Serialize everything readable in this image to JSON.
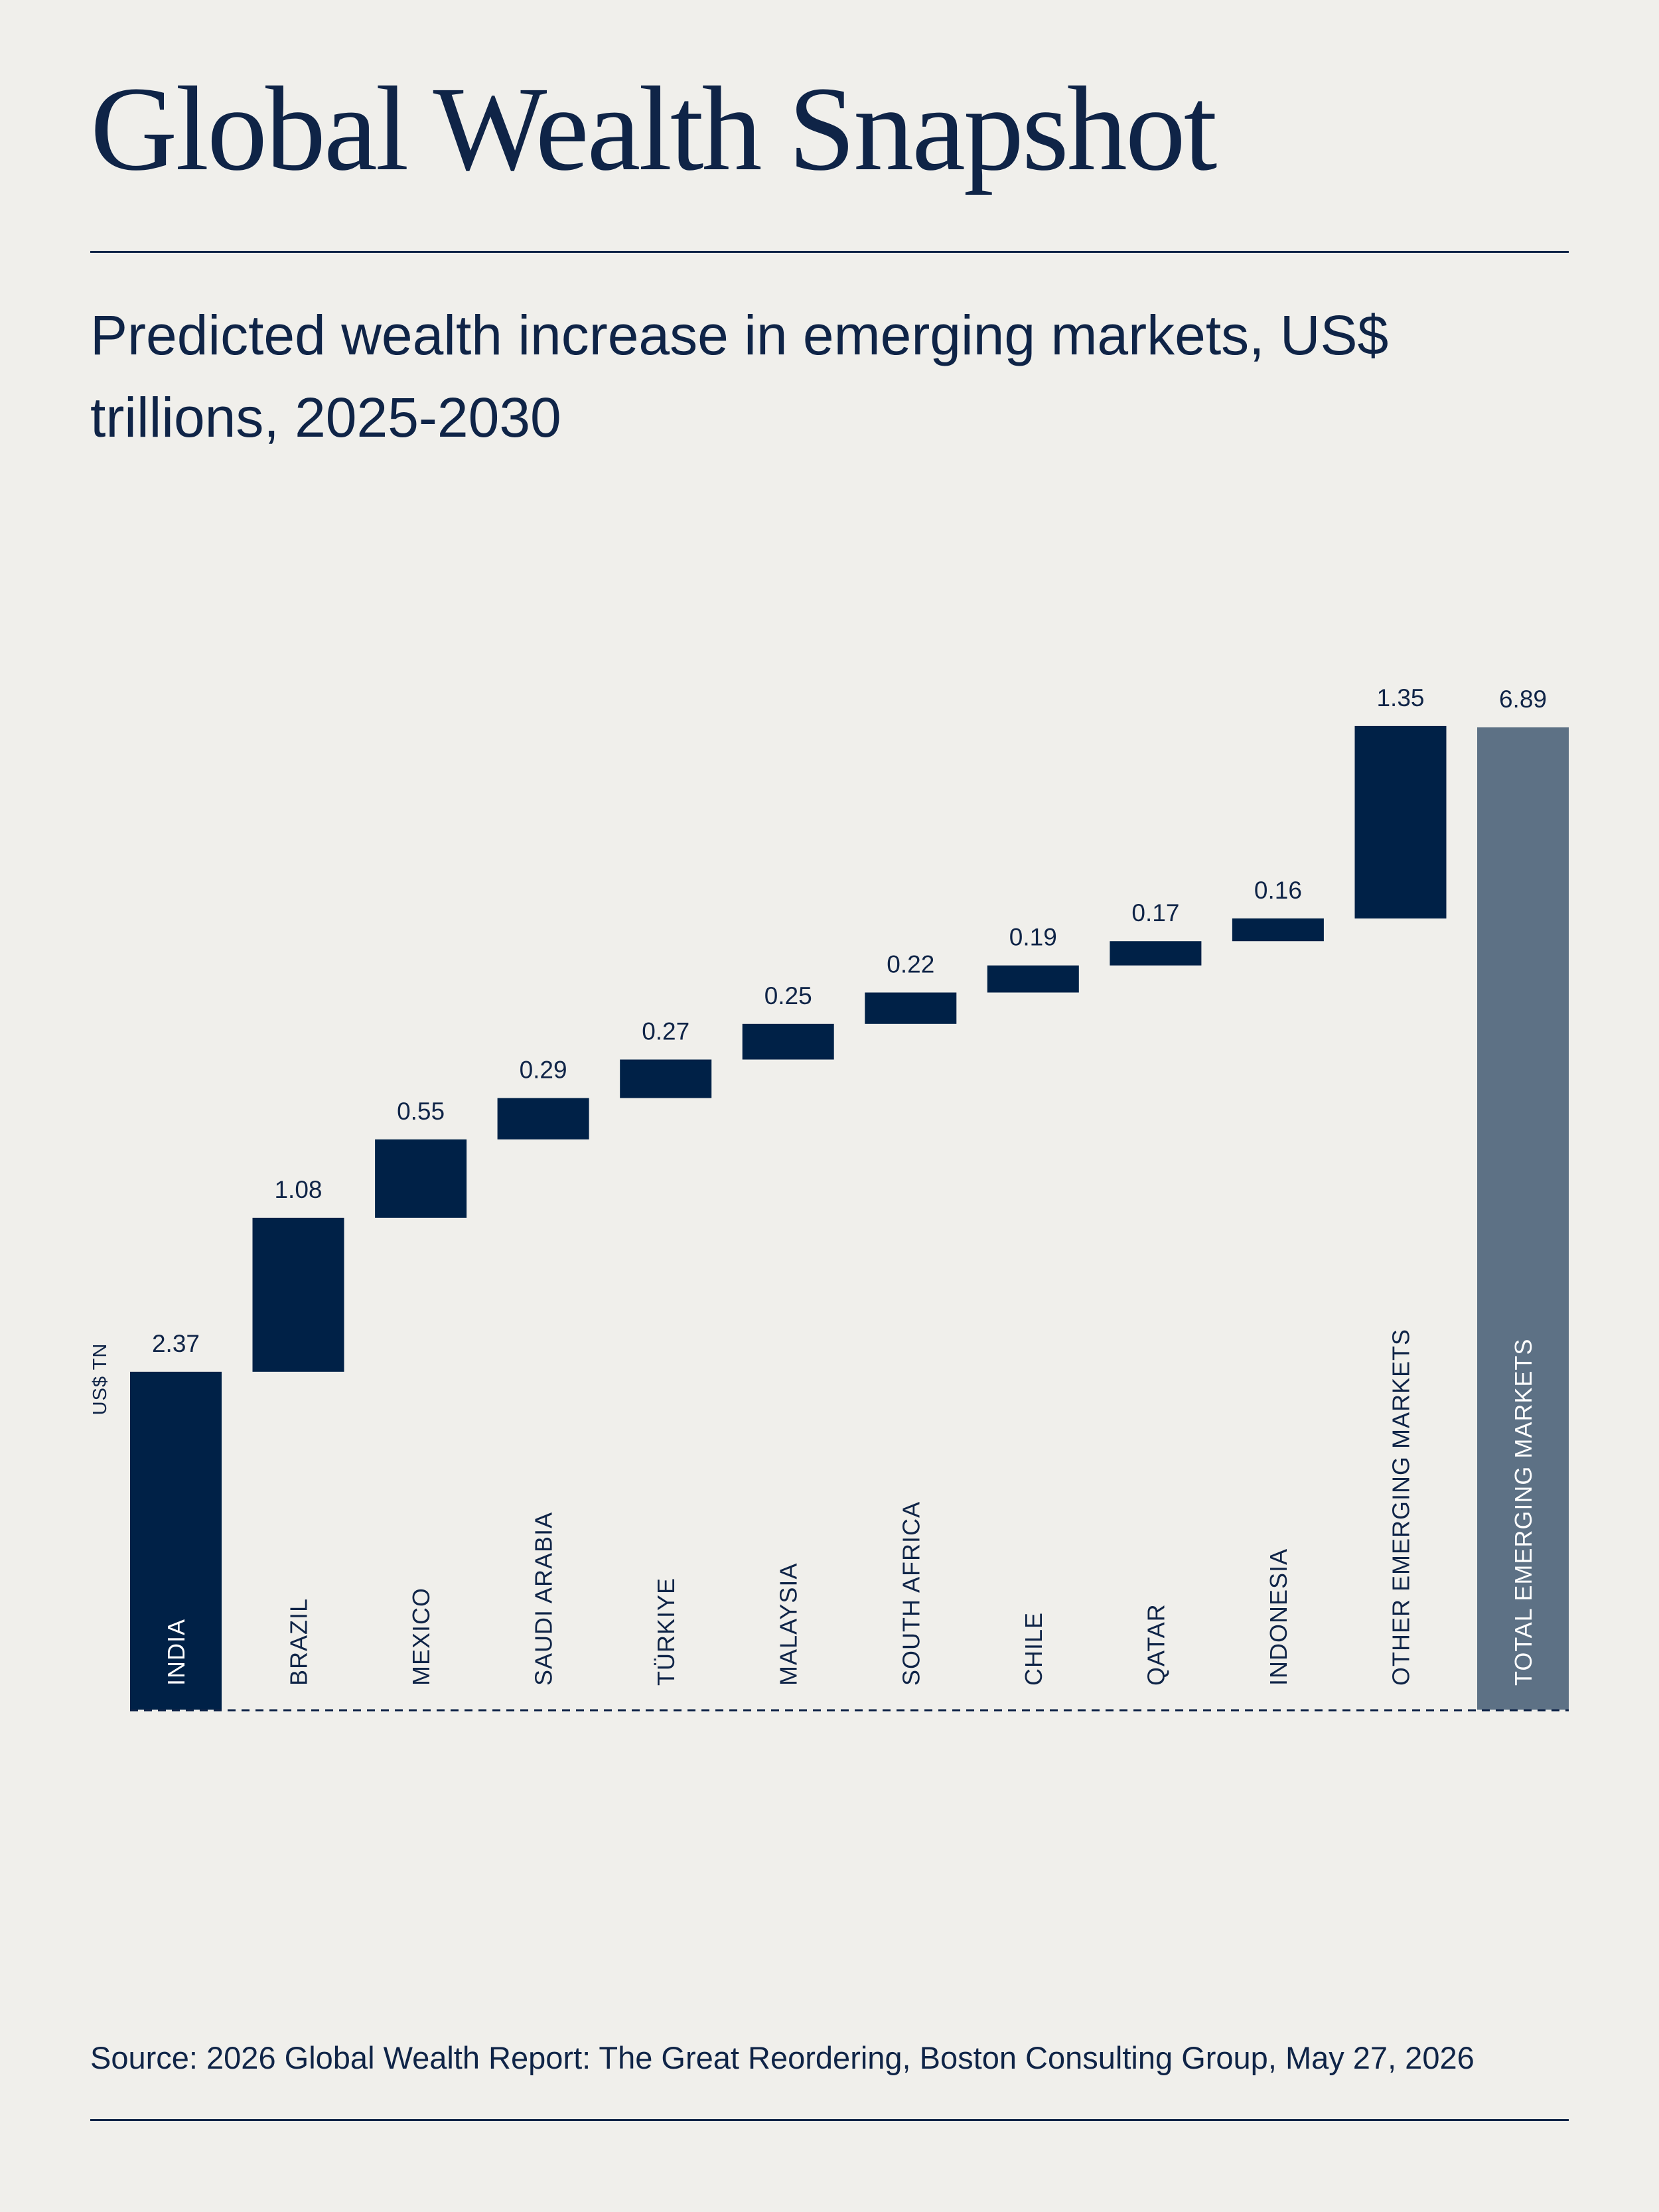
{
  "header": {
    "title": "Global Wealth Snapshot",
    "subtitle": "Predicted wealth increase in emerging markets, US$ trillions, 2025-2030"
  },
  "footer": {
    "source": "Source: 2026 Global Wealth Report: The Great Reordering, Boston Consulting Group, May 27, 2026"
  },
  "colors": {
    "background": "#f0efeb",
    "bar": "#002147",
    "total_bar": "#5d7185",
    "text": "#0f2447"
  },
  "chart_data": {
    "type": "waterfall",
    "ylabel": "US$ TN",
    "categories": [
      "INDIA",
      "BRAZIL",
      "MEXICO",
      "SAUDI ARABIA",
      "TÜRKIYE",
      "MALAYSIA",
      "SOUTH AFRICA",
      "CHILE",
      "QATAR",
      "INDONESIA",
      "OTHER EMERGING MARKETS",
      "TOTAL EMERGING MARKETS"
    ],
    "values": [
      2.37,
      1.08,
      0.55,
      0.29,
      0.27,
      0.25,
      0.22,
      0.19,
      0.17,
      0.16,
      1.35,
      6.89
    ],
    "value_labels": [
      "2.37",
      "1.08",
      "0.55",
      "0.29",
      "0.27",
      "0.25",
      "0.22",
      "0.19",
      "0.17",
      "0.16",
      "1.35",
      "6.89"
    ],
    "total_index": 11,
    "ylim": [
      0,
      6.89
    ],
    "grid": false,
    "baseline": "dashed"
  }
}
